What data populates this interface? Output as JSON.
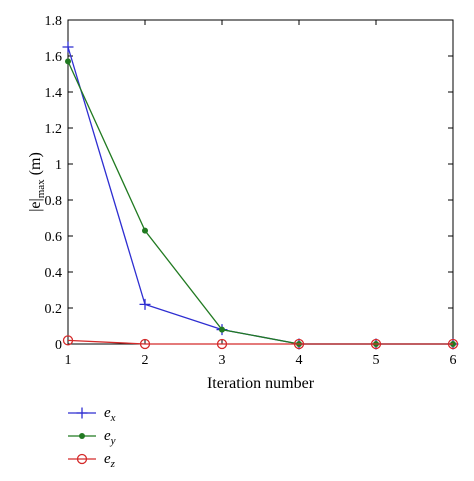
{
  "chart_data": {
    "type": "line",
    "title": "",
    "xlabel": "Iteration number",
    "ylabel": "|e|max (m)",
    "ylabel_main": "|e|",
    "ylabel_sub": "max",
    "ylabel_unit": " (m)",
    "xlim": [
      1,
      6
    ],
    "ylim": [
      0,
      1.8
    ],
    "x": [
      1,
      2,
      3,
      4,
      5,
      6
    ],
    "xticks": [
      "1",
      "2",
      "3",
      "4",
      "5",
      "6"
    ],
    "yticks": [
      "0",
      "0.2",
      "0.4",
      "0.6",
      "0.8",
      "1",
      "1.2",
      "1.4",
      "1.6",
      "1.8"
    ],
    "ytick_values": [
      0,
      0.2,
      0.4,
      0.6,
      0.8,
      1.0,
      1.2,
      1.4,
      1.6,
      1.8
    ],
    "grid": false,
    "legend_position": "bottom-left",
    "series": [
      {
        "name": "ex",
        "name_main": "e",
        "name_sub": "x",
        "marker": "plus",
        "color": "#2e2ed1",
        "values": [
          1.65,
          0.22,
          0.08,
          0.0,
          0.0,
          0.0
        ]
      },
      {
        "name": "ey",
        "name_main": "e",
        "name_sub": "y",
        "marker": "dot",
        "color": "#217a21",
        "values": [
          1.57,
          0.63,
          0.08,
          0.0,
          0.0,
          0.0
        ]
      },
      {
        "name": "ez",
        "name_main": "e",
        "name_sub": "z",
        "marker": "circle",
        "color": "#d42a2a",
        "values": [
          0.02,
          0.0,
          0.0,
          0.0,
          0.0,
          0.0
        ]
      }
    ]
  }
}
